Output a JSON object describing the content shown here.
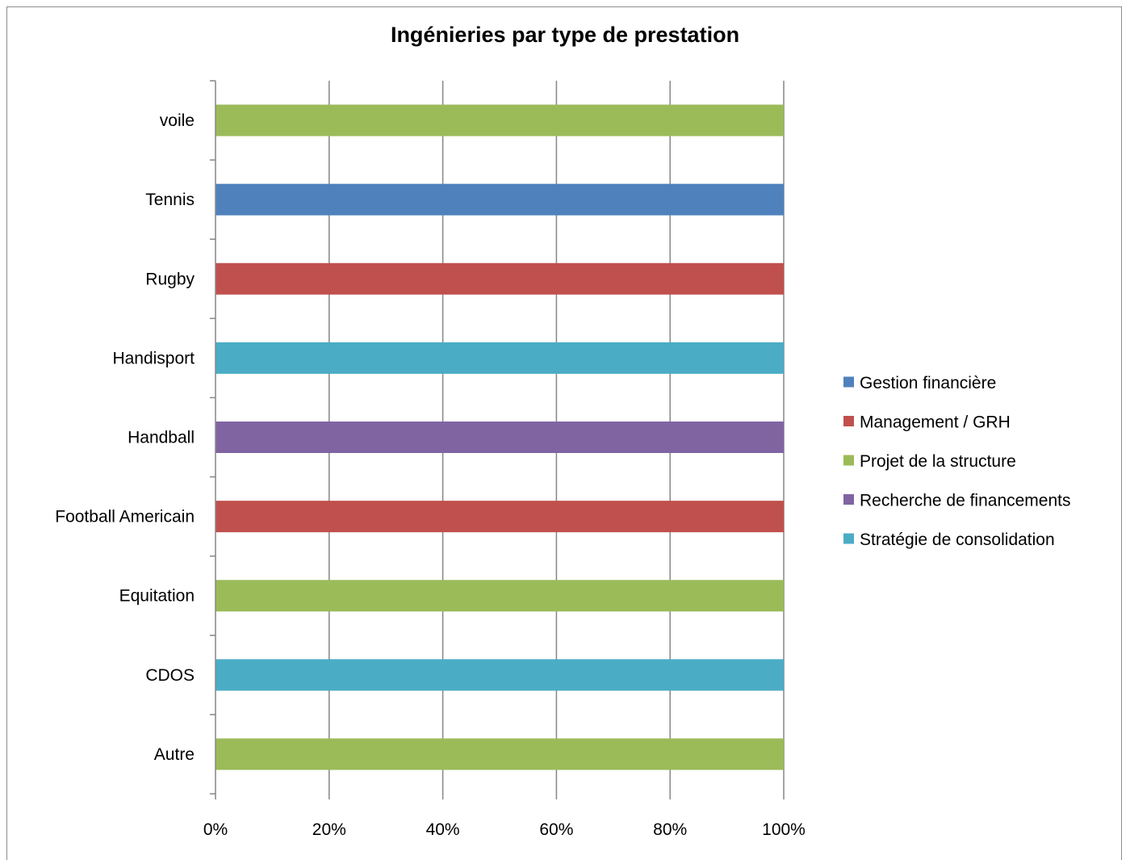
{
  "chart_data": {
    "type": "bar",
    "orientation": "horizontal",
    "stacked": true,
    "percent_scale": true,
    "title": "Ingénieries par type de prestation",
    "xlabel": "",
    "ylabel": "",
    "xlim": [
      0,
      100
    ],
    "x_ticks": [
      "0%",
      "20%",
      "40%",
      "60%",
      "80%",
      "100%"
    ],
    "grid": "vertical",
    "legend_position": "right",
    "categories": [
      "Autre",
      "CDOS",
      "Equitation",
      "Football Americain",
      "Handball",
      "Handisport",
      "Rugby",
      "Tennis",
      "voile"
    ],
    "series": [
      {
        "name": "Gestion financière",
        "color": "#4F81BD",
        "values": [
          0,
          0,
          0,
          0,
          0,
          0,
          0,
          100,
          0
        ]
      },
      {
        "name": "Management / GRH",
        "color": "#C0504D",
        "values": [
          0,
          0,
          0,
          100,
          0,
          0,
          100,
          0,
          0
        ]
      },
      {
        "name": "Projet de la structure",
        "color": "#9BBB59",
        "values": [
          100,
          0,
          100,
          0,
          0,
          0,
          0,
          0,
          100
        ]
      },
      {
        "name": "Recherche de financements",
        "color": "#8064A2",
        "values": [
          0,
          0,
          0,
          0,
          100,
          0,
          0,
          0,
          0
        ]
      },
      {
        "name": "Stratégie de consolidation",
        "color": "#4BACC6",
        "values": [
          0,
          100,
          0,
          0,
          0,
          100,
          0,
          0,
          0
        ]
      }
    ]
  }
}
